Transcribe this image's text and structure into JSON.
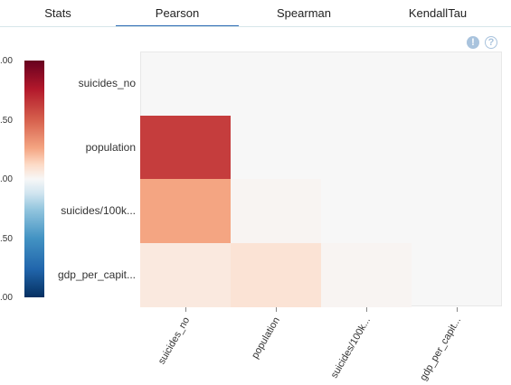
{
  "tabs": [
    {
      "label": "Stats",
      "active": false
    },
    {
      "label": "Pearson",
      "active": true
    },
    {
      "label": "Spearman",
      "active": false
    },
    {
      "label": "KendallTau",
      "active": false
    }
  ],
  "icons": {
    "info": "exclamation-icon",
    "help": "question-icon",
    "info_glyph": "!",
    "help_glyph": "?"
  },
  "colorbar": {
    "ticks": [
      ".00",
      ".50",
      ".00",
      ".50",
      ".00"
    ],
    "colors": [
      "#67001f",
      "#b2182b",
      "#f7f7f7",
      "#2166ac",
      "#053061"
    ]
  },
  "chart_data": {
    "type": "heatmap",
    "title": "",
    "rows": [
      "suicides_no",
      "population",
      "suicides/100k...",
      "gdp_per_capit..."
    ],
    "cols": [
      "suicides_no",
      "population",
      "suicides/100k...",
      "gdp_per_capit..."
    ],
    "values": [
      [
        null,
        null,
        null,
        null
      ],
      [
        0.62,
        null,
        null,
        null
      ],
      [
        0.25,
        0.01,
        null,
        null
      ],
      [
        0.05,
        0.07,
        0.01,
        null
      ]
    ],
    "colorscale": "RdBu",
    "zlim": [
      -1,
      1
    ]
  }
}
